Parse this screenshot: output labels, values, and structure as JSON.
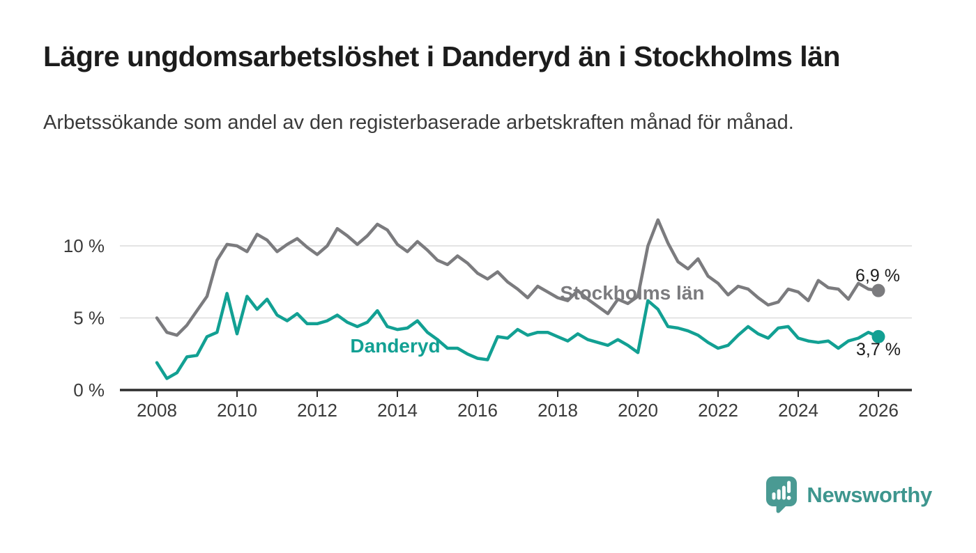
{
  "header": {
    "title": "Lägre ungdomsarbetslöshet i Danderyd än i Stockholms län",
    "subtitle": "Arbetssökande som andel av den registerbaserade arbetskraften månad för månad."
  },
  "chart_data": {
    "type": "line",
    "unit": "%",
    "x": [
      2008,
      2008.25,
      2008.5,
      2008.75,
      2009,
      2009.25,
      2009.5,
      2009.75,
      2010,
      2010.25,
      2010.5,
      2010.75,
      2011,
      2011.25,
      2011.5,
      2011.75,
      2012,
      2012.25,
      2012.5,
      2012.75,
      2013,
      2013.25,
      2013.5,
      2013.75,
      2014,
      2014.25,
      2014.5,
      2014.75,
      2015,
      2015.25,
      2015.5,
      2015.75,
      2016,
      2016.25,
      2016.5,
      2016.75,
      2017,
      2017.25,
      2017.5,
      2017.75,
      2018,
      2018.25,
      2018.5,
      2018.75,
      2019,
      2019.25,
      2019.5,
      2019.75,
      2020,
      2020.25,
      2020.5,
      2020.75,
      2021,
      2021.25,
      2021.5,
      2021.75,
      2022,
      2022.25,
      2022.5,
      2022.75,
      2023,
      2023.25,
      2023.5,
      2023.75,
      2024,
      2024.25,
      2024.5,
      2024.75,
      2025,
      2025.25,
      2025.5,
      2025.75,
      2026
    ],
    "series": [
      {
        "name": "Stockholms län",
        "color": "#7b7b7e",
        "end_label": "6,9 %",
        "end_value": 6.9,
        "values": [
          5.0,
          4.0,
          3.8,
          4.5,
          5.5,
          6.5,
          9.0,
          10.1,
          10.0,
          9.6,
          10.8,
          10.4,
          9.6,
          10.1,
          10.5,
          9.9,
          9.4,
          10.0,
          11.2,
          10.7,
          10.1,
          10.7,
          11.5,
          11.1,
          10.1,
          9.6,
          10.3,
          9.7,
          9.0,
          8.7,
          9.3,
          8.8,
          8.1,
          7.7,
          8.2,
          7.5,
          7.0,
          6.4,
          7.2,
          6.8,
          6.4,
          6.2,
          6.9,
          6.3,
          5.8,
          5.3,
          6.3,
          6.0,
          6.5,
          10.0,
          11.8,
          10.2,
          8.9,
          8.4,
          9.1,
          7.9,
          7.4,
          6.6,
          7.2,
          7.0,
          6.4,
          5.9,
          6.1,
          7.0,
          6.8,
          6.2,
          7.6,
          7.1,
          7.0,
          6.3,
          7.4,
          7.0,
          6.9
        ]
      },
      {
        "name": "Danderyd",
        "color": "#12a093",
        "end_label": "3,7 %",
        "end_value": 3.7,
        "values": [
          1.9,
          0.8,
          1.2,
          2.3,
          2.4,
          3.7,
          4.0,
          6.7,
          3.9,
          6.5,
          5.6,
          6.3,
          5.2,
          4.8,
          5.3,
          4.6,
          4.6,
          4.8,
          5.2,
          4.7,
          4.4,
          4.7,
          5.5,
          4.4,
          4.2,
          4.3,
          4.8,
          4.0,
          3.5,
          2.9,
          2.9,
          2.5,
          2.2,
          2.1,
          3.7,
          3.6,
          4.2,
          3.8,
          4.0,
          4.0,
          3.7,
          3.4,
          3.9,
          3.5,
          3.3,
          3.1,
          3.5,
          3.1,
          2.6,
          6.2,
          5.6,
          4.4,
          4.3,
          4.1,
          3.8,
          3.3,
          2.9,
          3.1,
          3.8,
          4.4,
          3.9,
          3.6,
          4.3,
          4.4,
          3.6,
          3.4,
          3.3,
          3.4,
          2.9,
          3.4,
          3.6,
          4.0,
          3.7
        ]
      }
    ],
    "xticks": [
      2008,
      2010,
      2012,
      2014,
      2016,
      2018,
      2020,
      2022,
      2024,
      2026
    ],
    "yticks": [
      0,
      5,
      10
    ],
    "ytick_labels": [
      "0 %",
      "5 %",
      "10 %"
    ],
    "ylim": [
      0,
      12.2
    ],
    "xlim": [
      2007.1,
      2026.9
    ],
    "grid": "horizontal",
    "legend": "inline-series-labels"
  },
  "colors": {
    "background": "#ffffff",
    "title": "#1c1c1c",
    "subtitle": "#3a3a3a",
    "axis_line": "#2e2e2e",
    "axis_text": "#3a3a3a",
    "gridline": "#dcdcdc",
    "end_label_text": "#1c1c1c"
  },
  "footer": {
    "brand": "Newsworthy",
    "brand_color": "#3e968e"
  }
}
